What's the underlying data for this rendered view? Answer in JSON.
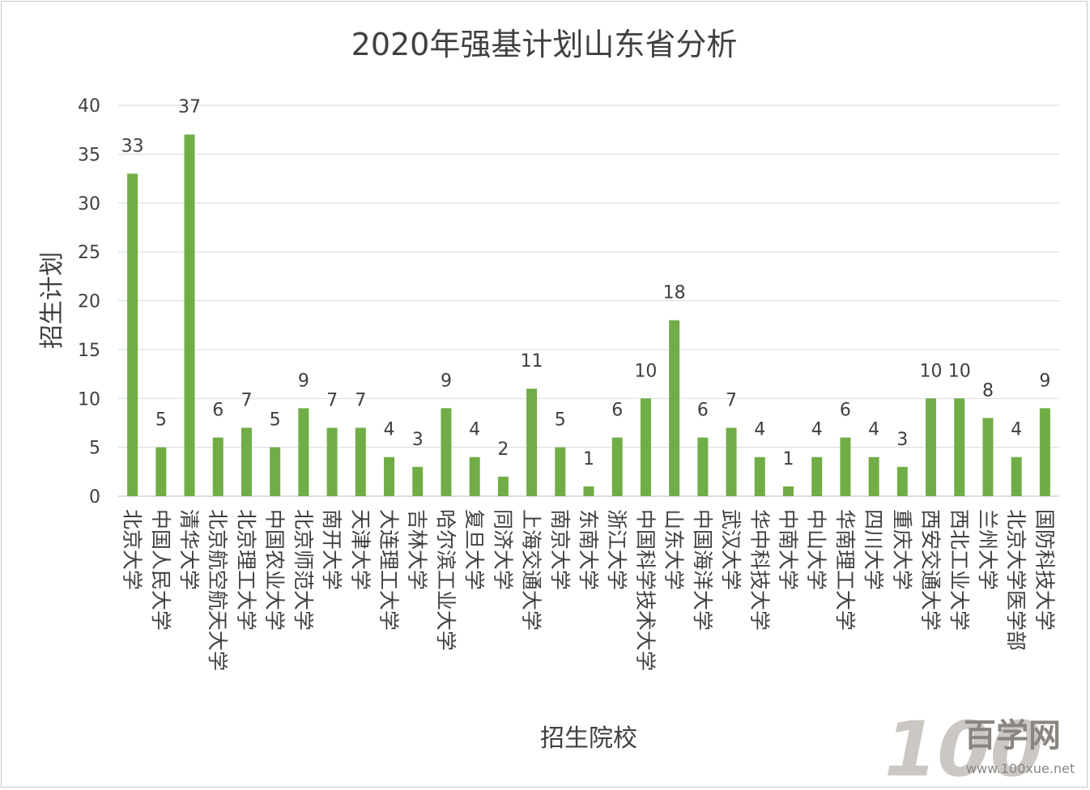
{
  "chart_data": {
    "type": "bar",
    "title": "2020年强基计划山东省分析",
    "xlabel": "招生院校",
    "ylabel": "招生计划",
    "ylim": [
      0,
      40
    ],
    "yticks": [
      0,
      5,
      10,
      15,
      20,
      25,
      30,
      35,
      40
    ],
    "grid": true,
    "legend": "none",
    "data_labels": true,
    "colors": {
      "bar": "#70ad47",
      "grid": "#d9d9d9",
      "text": "#404040",
      "title": "#404040"
    },
    "categories": [
      "北京大学",
      "中国人民大学",
      "清华大学",
      "北京航空航天大学",
      "北京理工大学",
      "中国农业大学",
      "北京师范大学",
      "南开大学",
      "天津大学",
      "大连理工大学",
      "吉林大学",
      "哈尔滨工业大学",
      "复旦大学",
      "同济大学",
      "上海交通大学",
      "南京大学",
      "东南大学",
      "浙江大学",
      "中国科学技术大学",
      "山东大学",
      "中国海洋大学",
      "武汉大学",
      "华中科技大学",
      "中南大学",
      "中山大学",
      "华南理工大学",
      "四川大学",
      "重庆大学",
      "西安交通大学",
      "西北工业大学",
      "兰州大学",
      "北京大学医学部",
      "国防科技大学"
    ],
    "values": [
      33,
      5,
      37,
      6,
      7,
      5,
      9,
      7,
      7,
      4,
      3,
      9,
      4,
      2,
      11,
      5,
      1,
      6,
      10,
      18,
      6,
      7,
      4,
      1,
      4,
      6,
      4,
      3,
      10,
      10,
      8,
      4,
      9
    ]
  },
  "watermark": {
    "logo_text": "100",
    "brand_text": "百学网",
    "url_text": "www.100xue.net",
    "colors": {
      "logo": "#bdb9b4",
      "brand": "#8a8580"
    }
  }
}
